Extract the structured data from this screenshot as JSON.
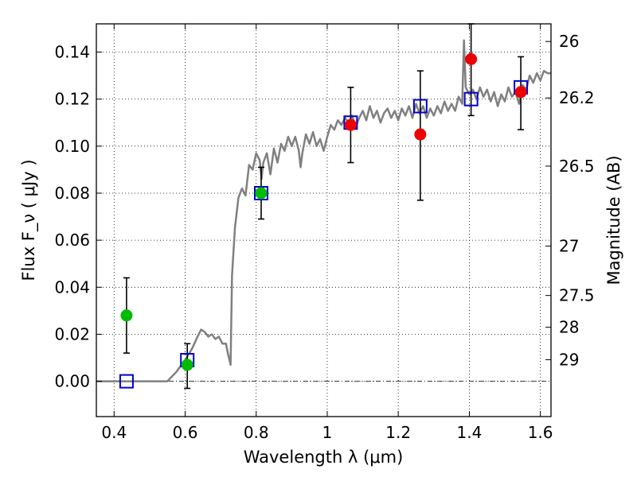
{
  "chart_data": {
    "type": "scatter",
    "title": "",
    "xlabel": "Wavelength  λ (μm)",
    "ylabel": "Flux  F_ν  ( μJy )",
    "ylabel_right": "Magnitude (AB)",
    "xlim": [
      0.35,
      1.63
    ],
    "ylim": [
      -0.015,
      0.152
    ],
    "grid": true,
    "x_ticks": [
      0.4,
      0.6,
      0.8,
      1.0,
      1.2,
      1.4,
      1.6
    ],
    "x_tick_labels": [
      "0.4",
      "0.6",
      "0.8",
      "1",
      "1.2",
      "1.4",
      "1.6"
    ],
    "y_ticks": [
      0.0,
      0.02,
      0.04,
      0.06,
      0.08,
      0.1,
      0.12,
      0.14
    ],
    "y_tick_labels": [
      "0.00",
      "0.02",
      "0.04",
      "0.06",
      "0.08",
      "0.10",
      "0.12",
      "0.14"
    ],
    "right_ticks": [
      {
        "flux": 0.1445,
        "label": "26"
      },
      {
        "flux": 0.1205,
        "label": "26.2"
      },
      {
        "flux": 0.0915,
        "label": "26.5"
      },
      {
        "flux": 0.0575,
        "label": "27"
      },
      {
        "flux": 0.0365,
        "label": "27.5"
      },
      {
        "flux": 0.023,
        "label": "28"
      },
      {
        "flux": 0.0092,
        "label": "29"
      }
    ],
    "zero_line": 0.0,
    "series": [
      {
        "kind": "line",
        "color": "#808080",
        "points": [
          [
            0.35,
            0.0
          ],
          [
            0.55,
            0.0
          ],
          [
            0.575,
            0.004
          ],
          [
            0.6,
            0.009
          ],
          [
            0.62,
            0.014
          ],
          [
            0.635,
            0.019
          ],
          [
            0.645,
            0.022
          ],
          [
            0.655,
            0.021
          ],
          [
            0.665,
            0.019
          ],
          [
            0.675,
            0.02
          ],
          [
            0.685,
            0.018
          ],
          [
            0.695,
            0.019
          ],
          [
            0.705,
            0.016
          ],
          [
            0.715,
            0.016
          ],
          [
            0.72,
            0.012
          ],
          [
            0.728,
            0.007
          ],
          [
            0.732,
            0.045
          ],
          [
            0.74,
            0.065
          ],
          [
            0.75,
            0.078
          ],
          [
            0.76,
            0.082
          ],
          [
            0.77,
            0.079
          ],
          [
            0.78,
            0.092
          ],
          [
            0.79,
            0.09
          ],
          [
            0.8,
            0.097
          ],
          [
            0.81,
            0.094
          ],
          [
            0.815,
            0.086
          ],
          [
            0.82,
            0.093
          ],
          [
            0.83,
            0.097
          ],
          [
            0.84,
            0.088
          ],
          [
            0.85,
            0.099
          ],
          [
            0.86,
            0.093
          ],
          [
            0.87,
            0.101
          ],
          [
            0.88,
            0.098
          ],
          [
            0.89,
            0.104
          ],
          [
            0.9,
            0.1
          ],
          [
            0.91,
            0.104
          ],
          [
            0.92,
            0.098
          ],
          [
            0.925,
            0.091
          ],
          [
            0.93,
            0.097
          ],
          [
            0.94,
            0.105
          ],
          [
            0.95,
            0.101
          ],
          [
            0.96,
            0.106
          ],
          [
            0.97,
            0.1
          ],
          [
            0.98,
            0.103
          ],
          [
            0.99,
            0.098
          ],
          [
            1.0,
            0.104
          ],
          [
            1.01,
            0.109
          ],
          [
            1.02,
            0.107
          ],
          [
            1.03,
            0.111
          ],
          [
            1.04,
            0.109
          ],
          [
            1.05,
            0.112
          ],
          [
            1.06,
            0.11
          ],
          [
            1.07,
            0.113
          ],
          [
            1.08,
            0.108
          ],
          [
            1.09,
            0.112
          ],
          [
            1.1,
            0.115
          ],
          [
            1.11,
            0.111
          ],
          [
            1.12,
            0.117
          ],
          [
            1.13,
            0.112
          ],
          [
            1.14,
            0.115
          ],
          [
            1.15,
            0.11
          ],
          [
            1.16,
            0.114
          ],
          [
            1.17,
            0.116
          ],
          [
            1.18,
            0.112
          ],
          [
            1.19,
            0.115
          ],
          [
            1.2,
            0.111
          ],
          [
            1.21,
            0.116
          ],
          [
            1.22,
            0.113
          ],
          [
            1.23,
            0.117
          ],
          [
            1.24,
            0.112
          ],
          [
            1.25,
            0.118
          ],
          [
            1.26,
            0.114
          ],
          [
            1.27,
            0.117
          ],
          [
            1.28,
            0.112
          ],
          [
            1.29,
            0.116
          ],
          [
            1.3,
            0.113
          ],
          [
            1.31,
            0.117
          ],
          [
            1.32,
            0.114
          ],
          [
            1.33,
            0.119
          ],
          [
            1.34,
            0.115
          ],
          [
            1.35,
            0.118
          ],
          [
            1.36,
            0.115
          ],
          [
            1.37,
            0.121
          ],
          [
            1.38,
            0.118
          ],
          [
            1.385,
            0.145
          ],
          [
            1.39,
            0.125
          ],
          [
            1.4,
            0.122
          ],
          [
            1.41,
            0.124
          ],
          [
            1.42,
            0.12
          ],
          [
            1.43,
            0.125
          ],
          [
            1.44,
            0.121
          ],
          [
            1.45,
            0.124
          ],
          [
            1.46,
            0.119
          ],
          [
            1.47,
            0.123
          ],
          [
            1.48,
            0.117
          ],
          [
            1.49,
            0.122
          ],
          [
            1.5,
            0.119
          ],
          [
            1.51,
            0.125
          ],
          [
            1.52,
            0.121
          ],
          [
            1.53,
            0.123
          ],
          [
            1.54,
            0.118
          ],
          [
            1.55,
            0.126
          ],
          [
            1.56,
            0.124
          ],
          [
            1.57,
            0.13
          ],
          [
            1.58,
            0.127
          ],
          [
            1.59,
            0.131
          ],
          [
            1.6,
            0.128
          ],
          [
            1.61,
            0.132
          ],
          [
            1.62,
            0.131
          ],
          [
            1.63,
            0.131
          ]
        ]
      },
      {
        "kind": "errorbar",
        "color": "#000000",
        "points": [
          {
            "x": 0.435,
            "lo": 0.012,
            "hi": 0.044
          },
          {
            "x": 0.606,
            "lo": -0.003,
            "hi": 0.016
          },
          {
            "x": 0.814,
            "lo": 0.069,
            "hi": 0.091
          },
          {
            "x": 1.066,
            "lo": 0.093,
            "hi": 0.125
          },
          {
            "x": 1.262,
            "lo": 0.077,
            "hi": 0.132
          },
          {
            "x": 1.405,
            "lo": 0.113,
            "hi": 0.152
          },
          {
            "x": 1.545,
            "lo": 0.107,
            "hi": 0.138
          }
        ]
      },
      {
        "kind": "marker",
        "shape": "open-square",
        "color": "#0000cc",
        "points": [
          [
            0.435,
            0.0
          ],
          [
            0.606,
            0.009
          ],
          [
            0.814,
            0.08
          ],
          [
            1.066,
            0.11
          ],
          [
            1.262,
            0.117
          ],
          [
            1.405,
            0.12
          ],
          [
            1.545,
            0.125
          ]
        ]
      },
      {
        "kind": "marker",
        "shape": "filled-circle",
        "color": "#00bb00",
        "points": [
          [
            0.435,
            0.028
          ],
          [
            0.606,
            0.007
          ],
          [
            0.814,
            0.08
          ]
        ]
      },
      {
        "kind": "marker",
        "shape": "filled-circle",
        "color": "#ee0000",
        "points": [
          [
            1.066,
            0.109
          ],
          [
            1.262,
            0.105
          ],
          [
            1.405,
            0.137
          ],
          [
            1.545,
            0.123
          ]
        ]
      }
    ]
  }
}
